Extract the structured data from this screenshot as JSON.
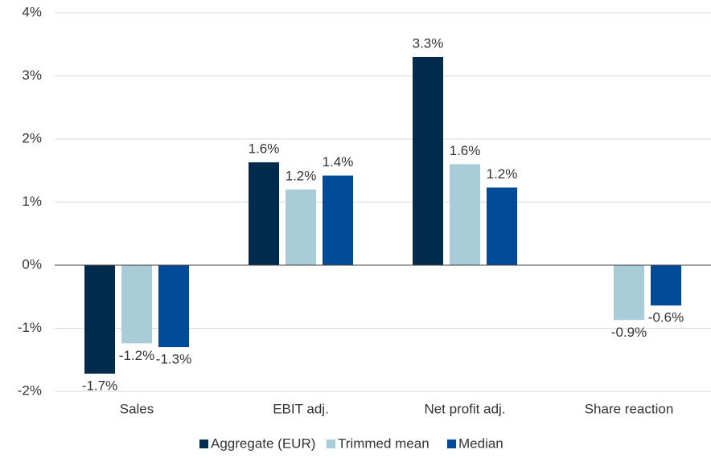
{
  "chart_data": {
    "type": "bar",
    "categories": [
      "Sales",
      "EBIT adj.",
      "Net profit adj.",
      "Share reaction"
    ],
    "series": [
      {
        "name": "Aggregate (EUR)",
        "color": "#002b4c",
        "values": [
          -1.72,
          1.63,
          3.3,
          null
        ],
        "value_labels": [
          "-1.7%",
          "1.6%",
          "3.3%",
          null
        ]
      },
      {
        "name": "Trimmed mean",
        "color": "#a8cdd8",
        "values": [
          -1.24,
          1.2,
          1.6,
          -0.87
        ],
        "value_labels": [
          "-1.2%",
          "1.2%",
          "1.6%",
          "-0.9%"
        ]
      },
      {
        "name": "Median",
        "color": "#004a98",
        "values": [
          -1.3,
          1.42,
          1.23,
          -0.64
        ],
        "value_labels": [
          "-1.3%",
          "1.4%",
          "1.2%",
          "-0.6%"
        ]
      }
    ],
    "ylim": [
      -2,
      4
    ],
    "yticks": [
      {
        "value": -2,
        "label": "-2%"
      },
      {
        "value": -1,
        "label": "-1%"
      },
      {
        "value": 0,
        "label": "0%"
      },
      {
        "value": 1,
        "label": "1%"
      },
      {
        "value": 2,
        "label": "2%"
      },
      {
        "value": 3,
        "label": "3%"
      },
      {
        "value": 4,
        "label": "4%"
      }
    ],
    "grid": true,
    "legend": "bottom"
  }
}
